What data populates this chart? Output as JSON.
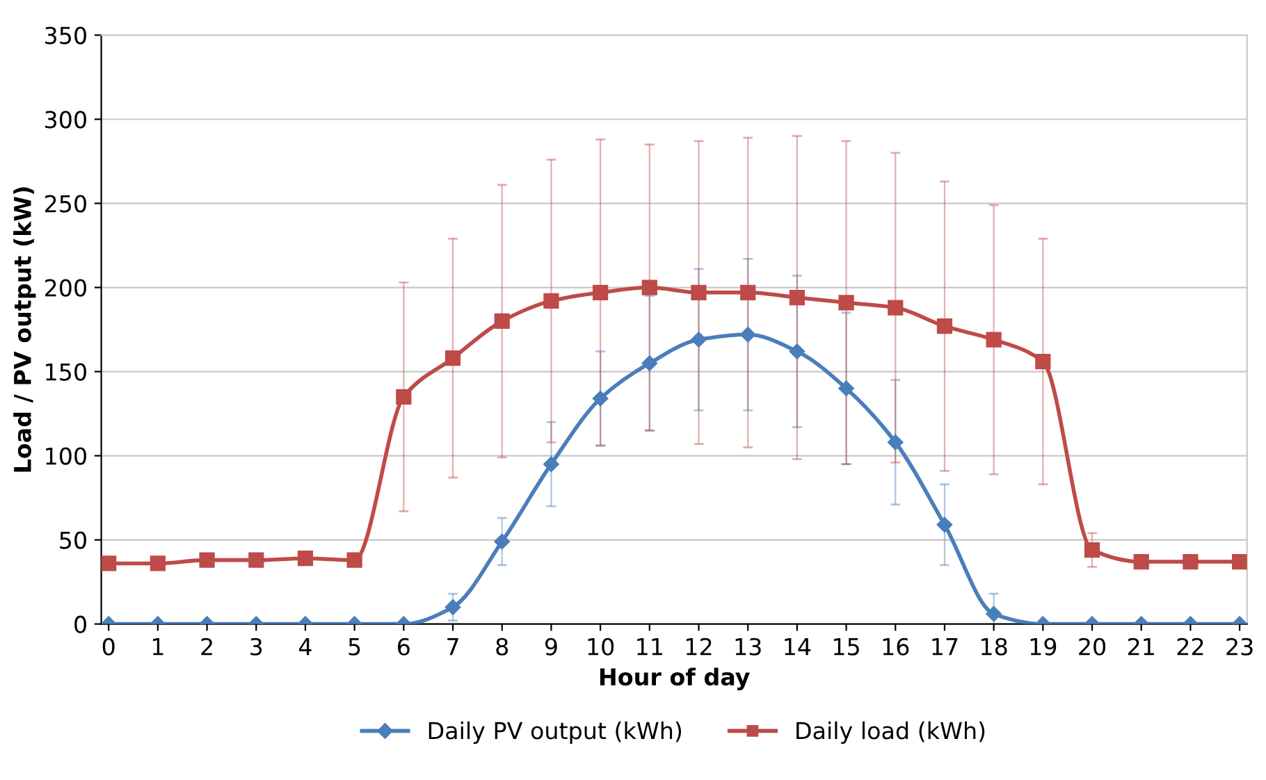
{
  "chart_data": {
    "type": "line",
    "xlabel": "Hour of day",
    "ylabel": "Load / PV output (kW)",
    "categories": [
      "0",
      "1",
      "2",
      "3",
      "4",
      "5",
      "6",
      "7",
      "8",
      "9",
      "10",
      "11",
      "12",
      "13",
      "14",
      "15",
      "16",
      "17",
      "18",
      "19",
      "20",
      "21",
      "22",
      "23"
    ],
    "series": [
      {
        "name": "Daily PV output (kWh)",
        "color": "#4a7ebb",
        "marker": "diamond",
        "values": [
          0,
          0,
          0,
          0,
          0,
          0,
          0,
          10,
          49,
          95,
          134,
          155,
          169,
          172,
          162,
          140,
          108,
          59,
          6,
          0,
          0,
          0,
          0,
          0
        ],
        "errors": [
          null,
          null,
          null,
          null,
          null,
          null,
          null,
          8,
          14,
          25,
          28,
          40,
          42,
          45,
          45,
          45,
          37,
          24,
          12,
          null,
          null,
          null,
          null,
          null
        ]
      },
      {
        "name": "Daily load (kWh)",
        "color": "#be4b48",
        "marker": "square",
        "values": [
          36,
          36,
          38,
          38,
          39,
          38,
          135,
          158,
          180,
          192,
          197,
          200,
          197,
          197,
          194,
          191,
          188,
          177,
          169,
          156,
          44,
          37,
          37,
          37
        ],
        "errors": [
          null,
          null,
          null,
          null,
          null,
          null,
          68,
          71,
          81,
          84,
          91,
          85,
          90,
          92,
          96,
          96,
          92,
          86,
          80,
          73,
          10,
          3,
          null,
          null
        ]
      }
    ],
    "ylim": [
      0,
      350
    ],
    "yticks": [
      0,
      50,
      100,
      150,
      200,
      250,
      300,
      350
    ],
    "grid": "y",
    "legend": "bottom",
    "line_style": "solid"
  }
}
